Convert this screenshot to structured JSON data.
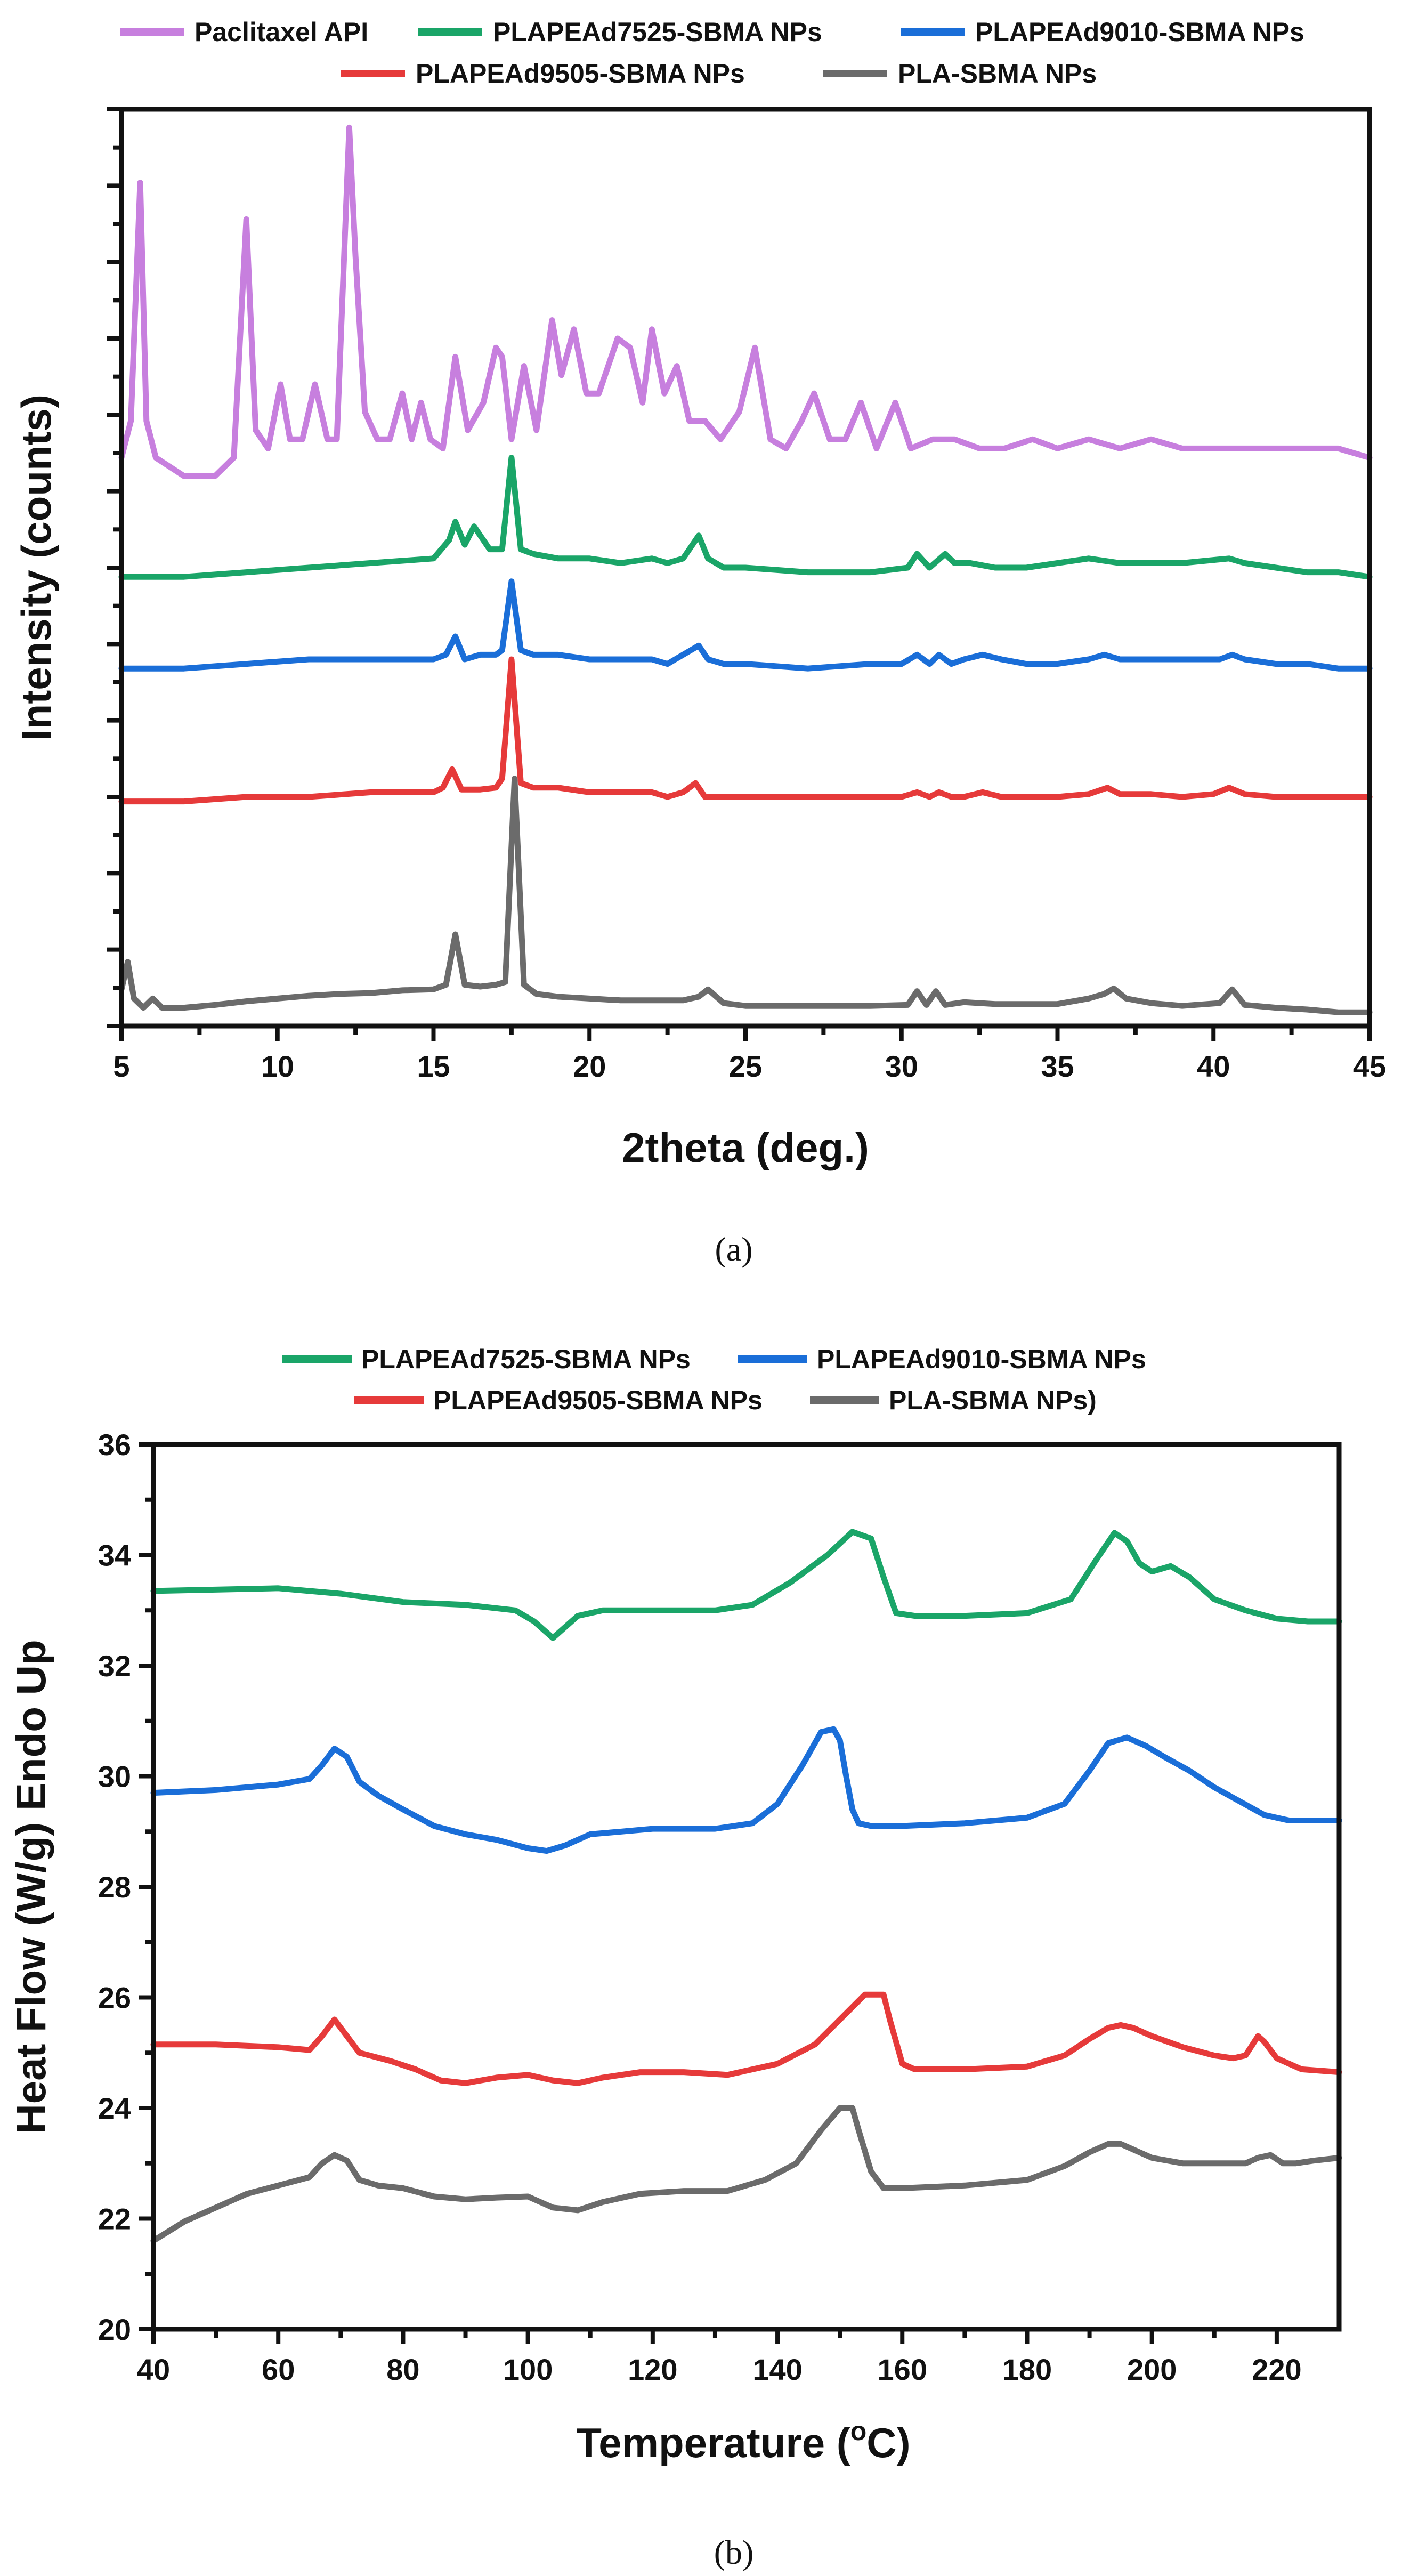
{
  "chart_data": [
    {
      "type": "line",
      "panel_label": "(a)",
      "title": "",
      "xlabel": "2theta (deg.)",
      "ylabel": "Intensity (counts)",
      "xlim": [
        5,
        45
      ],
      "ylim": [
        0,
        100
      ],
      "xticks": [
        5,
        10,
        15,
        20,
        25,
        30,
        35,
        40,
        45
      ],
      "ytick_labels_shown": false,
      "legend": "top, two rows",
      "series": [
        {
          "name": "Paclitaxel API",
          "color": "#c77fde",
          "x": [
            5,
            5.3,
            5.6,
            5.8,
            6.1,
            7,
            8,
            8.6,
            9,
            9.3,
            9.7,
            10.1,
            10.4,
            10.8,
            11.2,
            11.6,
            11.9,
            12.3,
            12.5,
            12.8,
            13.2,
            13.6,
            14,
            14.3,
            14.6,
            14.9,
            15.3,
            15.7,
            16.1,
            16.6,
            17,
            17.2,
            17.5,
            17.9,
            18.3,
            18.8,
            19.1,
            19.5,
            19.9,
            20.3,
            20.9,
            21.3,
            21.7,
            22,
            22.4,
            22.8,
            23.2,
            23.7,
            24.2,
            24.8,
            25.3,
            25.8,
            26.3,
            26.8,
            27.2,
            27.7,
            28.2,
            28.7,
            29.2,
            29.8,
            30.3,
            31,
            31.7,
            32.5,
            33.3,
            34.2,
            35,
            36,
            37,
            38,
            39,
            40,
            41,
            42,
            43,
            44,
            45
          ],
          "y": [
            62,
            66,
            92,
            66,
            62,
            60,
            60,
            62,
            88,
            65,
            63,
            70,
            64,
            64,
            70,
            64,
            64,
            98,
            84,
            67,
            64,
            64,
            69,
            64,
            68,
            64,
            63,
            73,
            65,
            68,
            74,
            73,
            64,
            72,
            65,
            77,
            71,
            76,
            69,
            69,
            75,
            74,
            68,
            76,
            69,
            72,
            66,
            66,
            64,
            67,
            74,
            64,
            63,
            66,
            69,
            64,
            64,
            68,
            63,
            68,
            63,
            64,
            64,
            63,
            63,
            64,
            63,
            64,
            63,
            64,
            63,
            63,
            63,
            63,
            63,
            63,
            62
          ]
        },
        {
          "name": "PLAPEAd7525-SBMA NPs",
          "color": "#1aa568",
          "x": [
            5,
            7,
            9,
            11,
            13,
            15,
            15.5,
            15.7,
            16,
            16.3,
            16.8,
            17.2,
            17.5,
            17.8,
            18.2,
            19,
            20,
            21,
            22,
            22.5,
            23,
            23.5,
            23.8,
            24.3,
            25,
            27,
            29,
            30.2,
            30.5,
            30.9,
            31.4,
            31.7,
            32.2,
            33,
            34,
            35,
            36,
            37,
            38,
            39,
            40.5,
            41,
            42,
            43,
            44,
            45
          ],
          "y": [
            49,
            49,
            49.5,
            50,
            50.5,
            51,
            53,
            55,
            52.5,
            54.5,
            52,
            52,
            62,
            52,
            51.5,
            51,
            51,
            50.5,
            51,
            50.5,
            51,
            53.5,
            51,
            50,
            50,
            49.5,
            49.5,
            50,
            51.5,
            50,
            51.5,
            50.5,
            50.5,
            50,
            50,
            50.5,
            51,
            50.5,
            50.5,
            50.5,
            51,
            50.5,
            50,
            49.5,
            49.5,
            49
          ]
        },
        {
          "name": "PLAPEAd9010-SBMA NPs",
          "color": "#1a6ed8",
          "x": [
            5,
            7,
            9,
            11,
            13,
            15,
            15.4,
            15.7,
            16,
            16.5,
            17,
            17.2,
            17.5,
            17.8,
            18.2,
            19,
            20,
            21,
            22,
            22.5,
            23,
            23.5,
            23.8,
            24.3,
            25,
            27,
            29,
            30,
            30.5,
            30.9,
            31.2,
            31.6,
            32,
            32.6,
            33.2,
            34,
            35,
            36,
            36.5,
            37,
            38,
            39,
            40.2,
            40.6,
            41,
            42,
            43,
            44,
            45
          ],
          "y": [
            39,
            39,
            39.5,
            40,
            40,
            40,
            40.5,
            42.5,
            40,
            40.5,
            40.5,
            41,
            48.5,
            41,
            40.5,
            40.5,
            40,
            40,
            40,
            39.5,
            40.5,
            41.5,
            40,
            39.5,
            39.5,
            39,
            39.5,
            39.5,
            40.5,
            39.5,
            40.5,
            39.5,
            40,
            40.5,
            40,
            39.5,
            39.5,
            40,
            40.5,
            40,
            40,
            40,
            40,
            40.5,
            40,
            39.5,
            39.5,
            39,
            39
          ]
        },
        {
          "name": "PLAPEAd9505-SBMA NPs",
          "color": "#e63a3a",
          "x": [
            5,
            7,
            9,
            11,
            13,
            15,
            15.3,
            15.6,
            15.9,
            16.5,
            17,
            17.2,
            17.5,
            17.8,
            18.2,
            19,
            20,
            21,
            22,
            22.5,
            23,
            23.4,
            23.7,
            24.2,
            25,
            27,
            29,
            30,
            30.5,
            30.9,
            31.2,
            31.6,
            32,
            32.6,
            33.2,
            34,
            35,
            36,
            36.6,
            37,
            38,
            39,
            40,
            40.5,
            41,
            42,
            43,
            44,
            45
          ],
          "y": [
            24.5,
            24.5,
            25,
            25,
            25.5,
            25.5,
            26,
            28,
            25.8,
            25.8,
            26,
            27,
            40,
            26.5,
            26,
            26,
            25.5,
            25.5,
            25.5,
            25,
            25.5,
            26.5,
            25,
            25,
            25,
            25,
            25,
            25,
            25.5,
            25,
            25.5,
            25,
            25,
            25.5,
            25,
            25,
            25,
            25.3,
            26,
            25.3,
            25.3,
            25,
            25.3,
            26,
            25.3,
            25,
            25,
            25,
            25
          ]
        },
        {
          "name": "PLA-SBMA NPs",
          "color": "#6b6b6b",
          "x": [
            5,
            5.2,
            5.4,
            5.7,
            6,
            6.3,
            7,
            8,
            9,
            10,
            11,
            12,
            13,
            14,
            15,
            15.4,
            15.7,
            16,
            16.5,
            17,
            17.3,
            17.6,
            17.9,
            18.3,
            19,
            20,
            21,
            22,
            23,
            23.5,
            23.8,
            24.3,
            25,
            27,
            29,
            30.2,
            30.5,
            30.8,
            31.1,
            31.4,
            32,
            33,
            34,
            35,
            36,
            36.5,
            36.8,
            37.2,
            38,
            39,
            40.2,
            40.6,
            41,
            42,
            43,
            44,
            45
          ],
          "y": [
            4,
            7,
            3,
            2,
            3,
            2,
            2,
            2.3,
            2.7,
            3,
            3.3,
            3.5,
            3.6,
            3.9,
            4,
            4.5,
            10,
            4.5,
            4.3,
            4.5,
            4.8,
            27,
            4.5,
            3.5,
            3.2,
            3,
            2.8,
            2.8,
            2.8,
            3.2,
            4,
            2.5,
            2.2,
            2.2,
            2.2,
            2.3,
            3.8,
            2.3,
            3.8,
            2.3,
            2.6,
            2.4,
            2.4,
            2.4,
            3,
            3.5,
            4.1,
            3,
            2.5,
            2.2,
            2.5,
            4,
            2.3,
            2,
            1.8,
            1.5,
            1.5
          ]
        }
      ]
    },
    {
      "type": "line",
      "panel_label": "(b)",
      "title": "",
      "xlabel": "Temperature (",
      "xlabel_sup": "o",
      "xlabel_tail": "C)",
      "ylabel": "Heat Flow (W/g) Endo Up",
      "xlim": [
        40,
        230
      ],
      "ylim": [
        20,
        36
      ],
      "xticks": [
        40,
        60,
        80,
        100,
        120,
        140,
        160,
        180,
        200,
        220
      ],
      "yticks": [
        20,
        22,
        24,
        26,
        28,
        30,
        32,
        34,
        36
      ],
      "legend": "top, two rows",
      "series": [
        {
          "name": "PLAPEAd7525-SBMA NPs",
          "color": "#1aa568",
          "x": [
            40,
            60,
            70,
            80,
            90,
            98,
            101,
            104,
            108,
            112,
            120,
            130,
            136,
            142,
            148,
            152,
            155,
            157,
            159,
            162,
            170,
            180,
            187,
            191,
            194,
            196,
            198,
            200,
            203,
            206,
            210,
            215,
            220,
            225,
            230
          ],
          "y": [
            33.35,
            33.4,
            33.3,
            33.15,
            33.1,
            33.0,
            32.8,
            32.5,
            32.9,
            33.0,
            33.0,
            33.0,
            33.1,
            33.5,
            34.0,
            34.42,
            34.3,
            33.6,
            32.95,
            32.9,
            32.9,
            32.95,
            33.2,
            33.9,
            34.4,
            34.25,
            33.85,
            33.7,
            33.8,
            33.6,
            33.2,
            33.0,
            32.85,
            32.8,
            32.8
          ]
        },
        {
          "name": "PLAPEAd9010-SBMA NPs",
          "color": "#1a6ed8",
          "x": [
            40,
            50,
            60,
            65,
            67,
            69,
            71,
            73,
            76,
            80,
            85,
            90,
            95,
            100,
            103,
            106,
            110,
            115,
            120,
            130,
            136,
            140,
            144,
            147,
            149,
            150,
            151,
            152,
            153,
            155,
            160,
            170,
            180,
            186,
            190,
            193,
            196,
            199,
            202,
            206,
            210,
            214,
            218,
            222,
            226,
            230
          ],
          "y": [
            29.7,
            29.75,
            29.85,
            29.95,
            30.2,
            30.5,
            30.35,
            29.9,
            29.65,
            29.4,
            29.1,
            28.95,
            28.85,
            28.7,
            28.65,
            28.75,
            28.95,
            29.0,
            29.05,
            29.05,
            29.15,
            29.5,
            30.2,
            30.8,
            30.85,
            30.65,
            30.0,
            29.4,
            29.15,
            29.1,
            29.1,
            29.15,
            29.25,
            29.5,
            30.1,
            30.6,
            30.7,
            30.55,
            30.35,
            30.1,
            29.8,
            29.55,
            29.3,
            29.2,
            29.2,
            29.2
          ]
        },
        {
          "name": "PLAPEAd9505-SBMA NPs",
          "color": "#e63a3a",
          "x": [
            40,
            50,
            60,
            65,
            67,
            69,
            71,
            73,
            78,
            82,
            86,
            90,
            95,
            100,
            104,
            108,
            112,
            118,
            125,
            132,
            140,
            146,
            150,
            154,
            157,
            158,
            160,
            162,
            170,
            180,
            186,
            190,
            193,
            195,
            197,
            200,
            205,
            210,
            213,
            215,
            217,
            218,
            220,
            224,
            230
          ],
          "y": [
            25.15,
            25.15,
            25.1,
            25.05,
            25.3,
            25.6,
            25.3,
            25.0,
            24.85,
            24.7,
            24.5,
            24.45,
            24.55,
            24.6,
            24.5,
            24.45,
            24.55,
            24.65,
            24.65,
            24.6,
            24.8,
            25.15,
            25.6,
            26.05,
            26.05,
            25.6,
            24.8,
            24.7,
            24.7,
            24.75,
            24.95,
            25.25,
            25.45,
            25.5,
            25.45,
            25.3,
            25.1,
            24.95,
            24.9,
            24.95,
            25.3,
            25.2,
            24.9,
            24.7,
            24.65
          ]
        },
        {
          "name": "PLA-SBMA NPs)",
          "color": "#6b6b6b",
          "x": [
            40,
            45,
            50,
            55,
            60,
            65,
            67,
            69,
            71,
            73,
            76,
            80,
            85,
            90,
            95,
            100,
            104,
            108,
            112,
            118,
            125,
            132,
            138,
            143,
            147,
            150,
            152,
            153,
            155,
            157,
            160,
            170,
            180,
            186,
            190,
            193,
            195,
            197,
            200,
            205,
            210,
            215,
            217,
            219,
            221,
            223,
            226,
            230
          ],
          "y": [
            21.6,
            21.95,
            22.2,
            22.45,
            22.6,
            22.75,
            23.0,
            23.15,
            23.05,
            22.7,
            22.6,
            22.55,
            22.4,
            22.35,
            22.38,
            22.4,
            22.2,
            22.15,
            22.3,
            22.45,
            22.5,
            22.5,
            22.7,
            23.0,
            23.6,
            24.0,
            24.0,
            23.6,
            22.85,
            22.55,
            22.55,
            22.6,
            22.7,
            22.95,
            23.2,
            23.35,
            23.35,
            23.25,
            23.1,
            23.0,
            23.0,
            23.0,
            23.1,
            23.15,
            23.0,
            23.0,
            23.05,
            23.1
          ]
        }
      ]
    }
  ]
}
